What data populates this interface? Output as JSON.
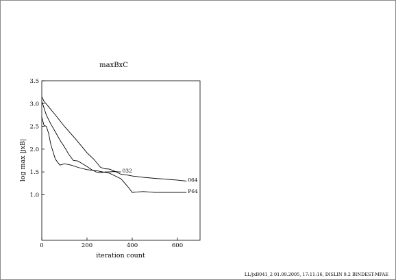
{
  "chart_data": {
    "type": "line",
    "title": "maxBxC",
    "xlabel": "iteration count",
    "ylabel": "log max |jxB|",
    "xlim": [
      0,
      700
    ],
    "ylim": [
      0.0,
      3.5
    ],
    "x_ticks": [
      "0",
      "200",
      "400",
      "600"
    ],
    "y_ticks": [
      "1.0",
      "1.5",
      "2.0",
      "2.5",
      "3.0",
      "3.5"
    ],
    "grid": false,
    "series": [
      {
        "name": "064",
        "x": [
          0,
          10,
          30,
          60,
          100,
          150,
          200,
          230,
          260,
          280,
          300,
          320,
          350,
          380,
          400,
          450,
          500,
          550,
          600,
          640
        ],
        "y": [
          3.15,
          3.05,
          2.93,
          2.75,
          2.5,
          2.22,
          1.92,
          1.78,
          1.6,
          1.57,
          1.56,
          1.52,
          1.45,
          1.43,
          1.41,
          1.38,
          1.36,
          1.34,
          1.32,
          1.3
        ]
      },
      {
        "name": "032",
        "x": [
          0,
          5,
          20,
          40,
          60,
          80,
          100,
          120,
          140,
          160,
          180,
          200,
          220,
          240,
          260,
          280,
          300,
          320,
          340,
          350
        ],
        "y": [
          3.05,
          2.98,
          2.75,
          2.55,
          2.38,
          2.2,
          2.05,
          1.88,
          1.75,
          1.74,
          1.68,
          1.62,
          1.55,
          1.5,
          1.48,
          1.5,
          1.5,
          1.51,
          1.5,
          1.5
        ]
      },
      {
        "name": "P64",
        "x": [
          0,
          10,
          20,
          30,
          40,
          60,
          80,
          100,
          130,
          160,
          200,
          250,
          300,
          350,
          380,
          400,
          420,
          450,
          500,
          550,
          600,
          640
        ],
        "y": [
          2.7,
          2.52,
          2.5,
          2.35,
          2.1,
          1.78,
          1.65,
          1.68,
          1.65,
          1.6,
          1.55,
          1.52,
          1.47,
          1.35,
          1.18,
          1.05,
          1.06,
          1.07,
          1.05,
          1.05,
          1.05,
          1.05
        ]
      }
    ]
  },
  "footer": "LL/jxB041_2     01.09.2005, 17:11:16, DISLIN 9.2 BINDEST-MPAE"
}
